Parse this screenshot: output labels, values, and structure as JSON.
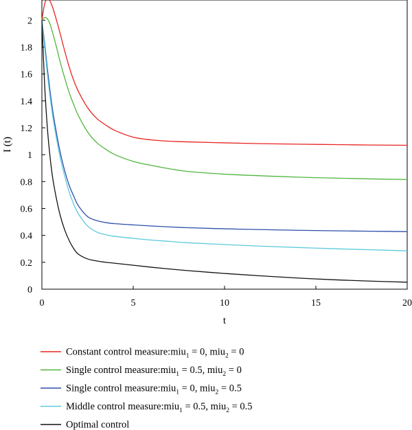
{
  "chart_data": {
    "type": "line",
    "xlabel": "t",
    "ylabel": "I (t)",
    "xlim": [
      0,
      20
    ],
    "ylim": [
      0,
      2.15
    ],
    "x_ticks": [
      0,
      5,
      10,
      15,
      20
    ],
    "y_ticks": [
      0,
      0.2,
      0.4,
      0.6,
      0.8,
      1,
      1.2,
      1.4,
      1.6,
      1.8,
      2
    ],
    "grid": false,
    "legend_position": "bottom",
    "x": [
      0,
      0.15,
      0.3,
      0.45,
      0.6,
      0.8,
      1,
      1.25,
      1.5,
      1.75,
      2,
      2.5,
      3,
      3.5,
      4,
      5,
      6,
      7,
      8,
      10,
      12,
      14,
      16,
      18,
      20
    ],
    "series": [
      {
        "name": "Constant control measure:miu1 = 0, miu2 = 0",
        "legend": {
          "a": "Constant control measure:miu",
          "s1": "1",
          "b": " = 0, miu",
          "s2": "2",
          "c": " = 0"
        },
        "color": "#e8231f",
        "values": [
          2.0,
          2.12,
          2.16,
          2.14,
          2.09,
          2.0,
          1.9,
          1.77,
          1.65,
          1.55,
          1.47,
          1.35,
          1.27,
          1.22,
          1.18,
          1.13,
          1.11,
          1.1,
          1.095,
          1.088,
          1.082,
          1.078,
          1.075,
          1.072,
          1.07
        ]
      },
      {
        "name": "Single control measure:miu1 = 0.5, miu2 = 0",
        "legend": {
          "a": "Single control measure:miu",
          "s1": "1",
          "b": " = 0.5, miu",
          "s2": "2",
          "c": " = 0"
        },
        "color": "#4fb53d",
        "values": [
          2.0,
          2.02,
          2.01,
          1.97,
          1.9,
          1.8,
          1.69,
          1.57,
          1.46,
          1.37,
          1.29,
          1.17,
          1.09,
          1.04,
          1.0,
          0.95,
          0.92,
          0.895,
          0.875,
          0.855,
          0.843,
          0.833,
          0.826,
          0.82,
          0.815
        ]
      },
      {
        "name": "Single control measure:miu1 = 0, miu2 = 0.5",
        "legend": {
          "a": "Single control measure:miu",
          "s1": "1",
          "b": " = 0, miu",
          "s2": "2",
          "c": " = 0.5"
        },
        "color": "#2d4fa8",
        "values": [
          2.0,
          1.83,
          1.64,
          1.47,
          1.32,
          1.16,
          1.02,
          0.88,
          0.77,
          0.69,
          0.62,
          0.54,
          0.51,
          0.495,
          0.487,
          0.478,
          0.47,
          0.463,
          0.457,
          0.449,
          0.443,
          0.438,
          0.434,
          0.431,
          0.428
        ]
      },
      {
        "name": "Middle control measure:miu1 = 0.5, miu2 = 0.5",
        "legend": {
          "a": "Middle control measure:miu",
          "s1": "1",
          "b": " = 0.5, miu",
          "s2": "2",
          "c": " = 0.5"
        },
        "color": "#5bc9dd",
        "values": [
          2.0,
          1.8,
          1.6,
          1.43,
          1.28,
          1.12,
          0.98,
          0.84,
          0.72,
          0.63,
          0.56,
          0.47,
          0.425,
          0.405,
          0.393,
          0.378,
          0.365,
          0.355,
          0.345,
          0.332,
          0.32,
          0.31,
          0.301,
          0.293,
          0.285
        ]
      },
      {
        "name": "Optimal control",
        "legend": {
          "a": "Optimal control",
          "s1": "",
          "b": "",
          "s2": "",
          "c": ""
        },
        "color": "#111111",
        "values": [
          2.0,
          1.52,
          1.2,
          0.98,
          0.82,
          0.67,
          0.55,
          0.44,
          0.36,
          0.3,
          0.26,
          0.225,
          0.21,
          0.2,
          0.193,
          0.178,
          0.163,
          0.15,
          0.138,
          0.117,
          0.099,
          0.083,
          0.07,
          0.06,
          0.052
        ]
      }
    ]
  }
}
